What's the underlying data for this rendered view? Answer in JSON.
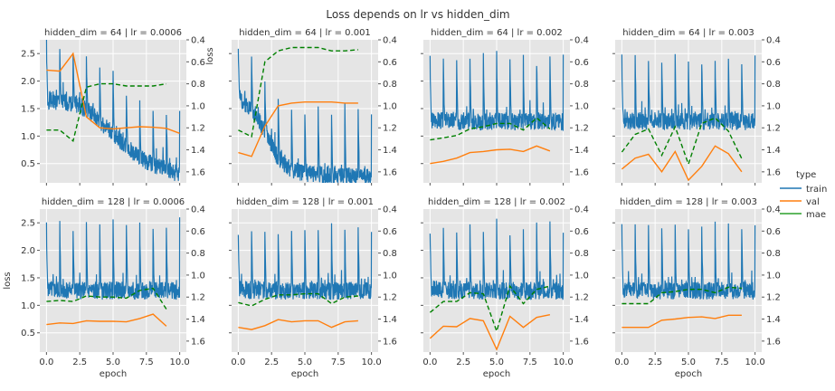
{
  "figure": {
    "title": "Loss depends on lr vs hidden_dim",
    "xlabel": "epoch",
    "ylabel_left": "loss",
    "ylabel_right": "loss"
  },
  "legend": {
    "title": "type",
    "entries": [
      {
        "label": "train",
        "color": "#1f77b4",
        "style": "solid"
      },
      {
        "label": "val",
        "color": "#ff7f0e",
        "style": "solid"
      },
      {
        "label": "mae",
        "color": "#2ca02c",
        "style": "solid"
      }
    ]
  },
  "chart_data": {
    "type": "line",
    "grid": true,
    "legend_position": "right",
    "left_axis": {
      "ylim": [
        0.15,
        2.75
      ],
      "ticks": [
        0.5,
        1.0,
        1.5,
        2.0,
        2.5
      ],
      "tick_labels": [
        "0.5",
        "1.0",
        "1.5",
        "2.0",
        "2.5"
      ]
    },
    "right_axis": {
      "ylim": [
        1.7,
        0.4
      ],
      "inverted": true,
      "ticks": [
        0.4,
        0.6,
        0.8,
        1.0,
        1.2,
        1.4,
        1.6
      ],
      "tick_labels": [
        "0.4",
        "0.6",
        "0.8",
        "1.0",
        "1.2",
        "1.4",
        "1.6"
      ]
    },
    "x_axis": {
      "xlim": [
        -0.5,
        10.5
      ],
      "ticks": [
        0,
        2.5,
        5,
        7.5,
        10
      ],
      "tick_labels": [
        "0.0",
        "2.5",
        "5.0",
        "7.5",
        "10.0"
      ]
    },
    "panels": [
      {
        "title": "hidden_dim = 64 | lr = 0.0006",
        "train": {
          "base": [
            1.65,
            1.62,
            1.6,
            1.5,
            1.25,
            1.05,
            0.8,
            0.6,
            0.48,
            0.4,
            0.3,
            0.25
          ],
          "peak": [
            2.6,
            2.5,
            2.4,
            2.3,
            2.15,
            1.95,
            1.7,
            1.5,
            1.35,
            1.35,
            1.4
          ]
        },
        "val": [
          2.2,
          2.18,
          2.5,
          1.35,
          1.15,
          1.13,
          1.15,
          1.17,
          1.16,
          1.14,
          1.05
        ],
        "mae": [
          1.22,
          1.22,
          1.32,
          0.83,
          0.8,
          0.8,
          0.82,
          0.82,
          0.82,
          0.8
        ]
      },
      {
        "title": "hidden_dim = 64 | lr = 0.001",
        "train": {
          "base": [
            1.7,
            1.5,
            1.1,
            0.6,
            0.38,
            0.33,
            0.3,
            0.28,
            0.27,
            0.26,
            0.25,
            0.24
          ],
          "peak": [
            2.6,
            2.3,
            1.9,
            1.6,
            1.4,
            1.35,
            1.35,
            1.35,
            1.35,
            1.35,
            1.35
          ]
        },
        "val": [
          0.7,
          0.63,
          1.18,
          1.55,
          1.6,
          1.62,
          1.62,
          1.62,
          1.6,
          1.6
        ],
        "mae": [
          1.22,
          1.28,
          0.6,
          0.5,
          0.47,
          0.47,
          0.47,
          0.5,
          0.5,
          0.49
        ]
      },
      {
        "title": "hidden_dim = 64 | lr = 0.002",
        "train": {
          "base": [
            1.3,
            1.28,
            1.27,
            1.27,
            1.26,
            1.27,
            1.27,
            1.26,
            1.27,
            1.27,
            1.26,
            1.27
          ],
          "peak": [
            2.3,
            2.3,
            2.3,
            2.3,
            2.3,
            2.3,
            2.3,
            2.3,
            2.3,
            2.3,
            2.3
          ]
        },
        "val": [
          0.5,
          0.54,
          0.6,
          0.7,
          0.72,
          0.75,
          0.76,
          0.72,
          0.82,
          0.73
        ],
        "mae": [
          1.31,
          1.29,
          1.27,
          1.21,
          1.19,
          1.16,
          1.16,
          1.22,
          1.11,
          1.21
        ]
      },
      {
        "title": "hidden_dim = 64 | lr = 0.003",
        "train": {
          "base": [
            1.3,
            1.28,
            1.27,
            1.27,
            1.26,
            1.27,
            1.27,
            1.26,
            1.27,
            1.27,
            1.26,
            1.27
          ],
          "peak": [
            2.3,
            2.3,
            2.3,
            2.3,
            2.3,
            2.3,
            2.3,
            2.3,
            2.3,
            2.3,
            2.3
          ]
        },
        "val": [
          0.4,
          0.6,
          0.67,
          0.35,
          0.72,
          0.2,
          0.45,
          0.82,
          0.68,
          0.35
        ],
        "mae": [
          1.42,
          1.26,
          1.21,
          1.45,
          1.19,
          1.53,
          1.16,
          1.11,
          1.23,
          1.48
        ]
      },
      {
        "title": "hidden_dim = 128 | lr = 0.0006",
        "train": {
          "base": [
            1.3,
            1.28,
            1.27,
            1.27,
            1.26,
            1.27,
            1.27,
            1.26,
            1.27,
            1.27,
            1.26,
            1.27
          ],
          "peak": [
            2.3,
            2.3,
            2.3,
            2.3,
            2.3,
            2.3,
            2.3,
            2.3,
            2.3,
            2.3,
            2.3
          ]
        },
        "val": [
          0.65,
          0.68,
          0.67,
          0.72,
          0.71,
          0.71,
          0.7,
          0.76,
          0.84,
          0.62
        ],
        "mae": [
          1.24,
          1.23,
          1.24,
          1.19,
          1.2,
          1.2,
          1.21,
          1.14,
          1.12,
          1.31
        ]
      },
      {
        "title": "hidden_dim = 128 | lr = 0.001",
        "train": {
          "base": [
            1.3,
            1.28,
            1.27,
            1.27,
            1.26,
            1.27,
            1.27,
            1.26,
            1.27,
            1.27,
            1.26,
            1.27
          ],
          "peak": [
            2.3,
            2.3,
            2.3,
            2.3,
            2.3,
            2.3,
            2.3,
            2.3,
            2.3,
            2.3,
            2.3
          ]
        },
        "val": [
          0.6,
          0.56,
          0.63,
          0.74,
          0.7,
          0.72,
          0.72,
          0.6,
          0.7,
          0.72
        ],
        "mae": [
          1.25,
          1.28,
          1.22,
          1.18,
          1.18,
          1.17,
          1.17,
          1.26,
          1.2,
          1.19
        ]
      },
      {
        "title": "hidden_dim = 128 | lr = 0.002",
        "train": {
          "base": [
            1.3,
            1.28,
            1.27,
            1.27,
            1.26,
            1.27,
            1.27,
            1.26,
            1.27,
            1.27,
            1.26,
            1.27
          ],
          "peak": [
            2.3,
            2.3,
            2.3,
            2.3,
            2.3,
            2.3,
            2.3,
            2.3,
            2.3,
            2.3,
            2.3
          ]
        },
        "val": [
          0.4,
          0.62,
          0.61,
          0.76,
          0.72,
          0.2,
          0.8,
          0.6,
          0.78,
          0.83
        ],
        "mae": [
          1.34,
          1.24,
          1.24,
          1.16,
          1.17,
          1.51,
          1.1,
          1.26,
          1.13,
          1.1
        ]
      },
      {
        "title": "hidden_dim = 128 | lr = 0.003",
        "train": {
          "base": [
            1.3,
            1.28,
            1.27,
            1.27,
            1.26,
            1.27,
            1.27,
            1.26,
            1.27,
            1.27,
            1.26,
            1.27
          ],
          "peak": [
            2.3,
            2.3,
            2.3,
            2.3,
            2.3,
            2.3,
            2.3,
            2.3,
            2.3,
            2.3,
            2.3
          ]
        },
        "val": [
          0.6,
          0.6,
          0.6,
          0.73,
          0.75,
          0.78,
          0.79,
          0.76,
          0.82,
          0.82
        ],
        "mae": [
          1.26,
          1.26,
          1.26,
          1.16,
          1.15,
          1.13,
          1.13,
          1.16,
          1.11,
          1.12
        ]
      }
    ]
  }
}
